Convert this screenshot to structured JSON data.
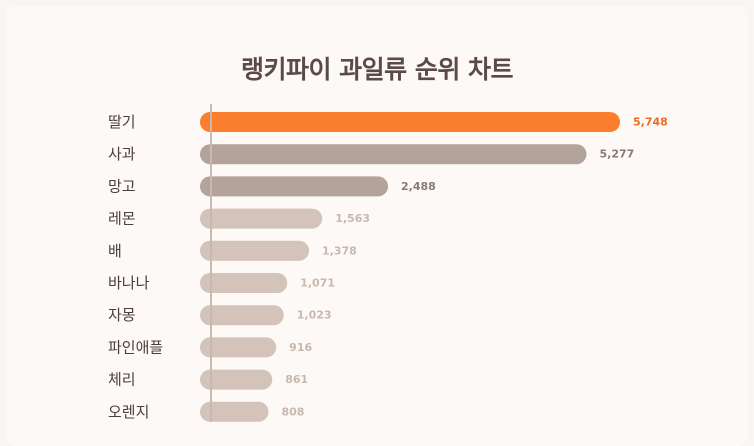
{
  "chart_data": {
    "type": "bar",
    "orientation": "horizontal",
    "title": "랭키파이 과일류 순위 차트",
    "categories": [
      "딸기",
      "사과",
      "망고",
      "레몬",
      "배",
      "바나나",
      "자몽",
      "파인애플",
      "체리",
      "오렌지"
    ],
    "values": [
      5748,
      5277,
      2488,
      1563,
      1378,
      1071,
      1023,
      916,
      861,
      808
    ],
    "value_labels": [
      "5,748",
      "5,277",
      "2,488",
      "1,563",
      "1,378",
      "1,071",
      "1,023",
      "916",
      "861",
      "808"
    ],
    "grid": false,
    "legend": "none"
  },
  "colors": {
    "background": "#fdf9f7",
    "title": "#5c4a44",
    "axis": "#c8b8ae",
    "highlight_bar": "#fb7e2f",
    "highlight_label": "#f06b1f",
    "dark_bar": "#b3a39a",
    "light_bar": "#d3c3b9",
    "dark_label": "#8a7c74",
    "light_label": "#c8b8ae",
    "category_text": "#4a3f3a"
  }
}
